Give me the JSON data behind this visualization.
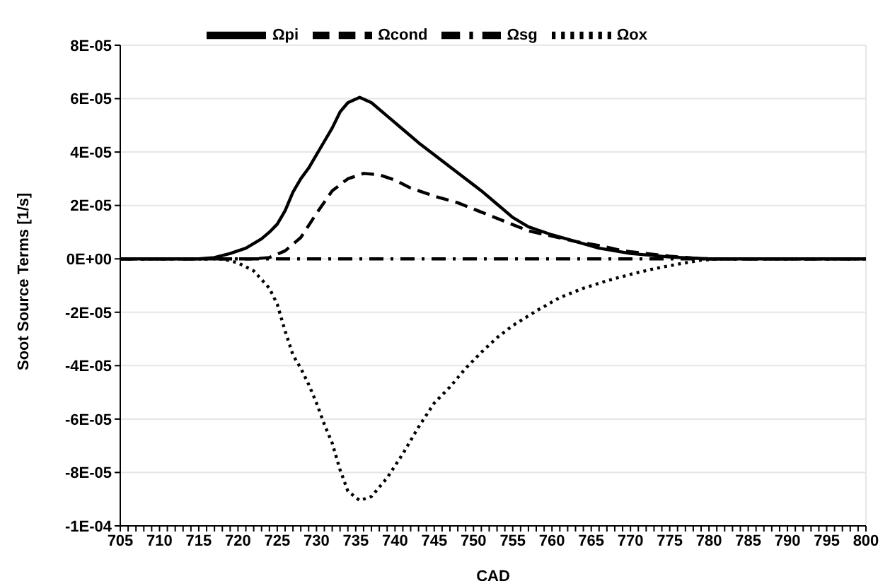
{
  "chart_data": {
    "type": "line",
    "xlabel": "CAD",
    "ylabel": "Soot Source Terms [1/s]",
    "legend": "top",
    "grid": "y",
    "xlim": [
      705,
      800
    ],
    "ylim": [
      -0.0001,
      8e-05
    ],
    "xticks": [
      705,
      {
        "value": 706,
        "label": null
      },
      {
        "value": 707,
        "label": null
      },
      {
        "value": 708,
        "label": null
      },
      {
        "value": 709,
        "label": null
      },
      710,
      {
        "value": 711,
        "label": null
      },
      {
        "value": 712,
        "label": null
      },
      {
        "value": 713,
        "label": null
      },
      {
        "value": 714,
        "label": null
      },
      715,
      {
        "value": 716,
        "label": null
      },
      {
        "value": 717,
        "label": null
      },
      {
        "value": 718,
        "label": null
      },
      {
        "value": 719,
        "label": null
      },
      720,
      {
        "value": 721,
        "label": null
      },
      {
        "value": 722,
        "label": null
      },
      {
        "value": 723,
        "label": null
      },
      {
        "value": 724,
        "label": null
      },
      725,
      {
        "value": 726,
        "label": null
      },
      {
        "value": 727,
        "label": null
      },
      {
        "value": 728,
        "label": null
      },
      {
        "value": 729,
        "label": null
      },
      730,
      {
        "value": 731,
        "label": null
      },
      {
        "value": 732,
        "label": null
      },
      {
        "value": 733,
        "label": null
      },
      {
        "value": 734,
        "label": null
      },
      735,
      {
        "value": 736,
        "label": null
      },
      {
        "value": 737,
        "label": null
      },
      {
        "value": 738,
        "label": null
      },
      {
        "value": 739,
        "label": null
      },
      740,
      {
        "value": 741,
        "label": null
      },
      {
        "value": 742,
        "label": null
      },
      {
        "value": 743,
        "label": null
      },
      {
        "value": 744,
        "label": null
      },
      745,
      {
        "value": 746,
        "label": null
      },
      {
        "value": 747,
        "label": null
      },
      {
        "value": 748,
        "label": null
      },
      {
        "value": 749,
        "label": null
      },
      750,
      {
        "value": 751,
        "label": null
      },
      {
        "value": 752,
        "label": null
      },
      {
        "value": 753,
        "label": null
      },
      {
        "value": 754,
        "label": null
      },
      755,
      {
        "value": 756,
        "label": null
      },
      {
        "value": 757,
        "label": null
      },
      {
        "value": 758,
        "label": null
      },
      {
        "value": 759,
        "label": null
      },
      760,
      {
        "value": 761,
        "label": null
      },
      {
        "value": 762,
        "label": null
      },
      {
        "value": 763,
        "label": null
      },
      {
        "value": 764,
        "label": null
      },
      765,
      {
        "value": 766,
        "label": null
      },
      {
        "value": 767,
        "label": null
      },
      {
        "value": 768,
        "label": null
      },
      {
        "value": 769,
        "label": null
      },
      770,
      {
        "value": 771,
        "label": null
      },
      {
        "value": 772,
        "label": null
      },
      {
        "value": 773,
        "label": null
      },
      {
        "value": 774,
        "label": null
      },
      775,
      {
        "value": 776,
        "label": null
      },
      {
        "value": 777,
        "label": null
      },
      {
        "value": 778,
        "label": null
      },
      {
        "value": 779,
        "label": null
      },
      780,
      {
        "value": 781,
        "label": null
      },
      {
        "value": 782,
        "label": null
      },
      {
        "value": 783,
        "label": null
      },
      {
        "value": 784,
        "label": null
      },
      785,
      {
        "value": 786,
        "label": null
      },
      {
        "value": 787,
        "label": null
      },
      {
        "value": 788,
        "label": null
      },
      {
        "value": 789,
        "label": null
      },
      790,
      {
        "value": 791,
        "label": null
      },
      {
        "value": 792,
        "label": null
      },
      {
        "value": 793,
        "label": null
      },
      {
        "value": 794,
        "label": null
      },
      795,
      {
        "value": 796,
        "label": null
      },
      {
        "value": 797,
        "label": null
      },
      {
        "value": 798,
        "label": null
      },
      {
        "value": 799,
        "label": null
      },
      800
    ],
    "yticks": [
      {
        "value": 8e-05,
        "label": "8E-05"
      },
      {
        "value": 6e-05,
        "label": "6E-05"
      },
      {
        "value": 4e-05,
        "label": "4E-05"
      },
      {
        "value": 2e-05,
        "label": "2E-05"
      },
      {
        "value": 0,
        "label": "0E+00"
      },
      {
        "value": -2e-05,
        "label": "-2E-05"
      },
      {
        "value": -4e-05,
        "label": "-4E-05"
      },
      {
        "value": -6e-05,
        "label": "-6E-05"
      },
      {
        "value": -8e-05,
        "label": "-8E-05"
      },
      {
        "value": -0.0001,
        "label": "-1E-04"
      }
    ],
    "series": [
      {
        "name": "Ωpi",
        "color": "#000000",
        "line_style": "solid",
        "x": [
          705,
          715,
          717,
          719,
          721,
          723,
          724,
          725,
          726,
          727,
          728,
          729,
          730,
          731,
          732,
          733,
          734,
          735.5,
          737,
          739,
          741,
          743,
          745,
          747,
          749,
          751,
          753,
          755,
          757,
          760,
          763,
          766,
          770,
          775,
          780,
          800
        ],
        "values": [
          0,
          0,
          5e-07,
          2e-06,
          4e-06,
          7.5e-06,
          1e-05,
          1.3e-05,
          1.8e-05,
          2.5e-05,
          3e-05,
          3.4e-05,
          3.9e-05,
          4.4e-05,
          4.9e-05,
          5.5e-05,
          5.85e-05,
          6.05e-05,
          5.85e-05,
          5.35e-05,
          4.85e-05,
          4.35e-05,
          3.9e-05,
          3.45e-05,
          3e-05,
          2.55e-05,
          2.05e-05,
          1.55e-05,
          1.2e-05,
          9e-06,
          6.5e-06,
          4e-06,
          2e-06,
          7e-07,
          0,
          0
        ]
      },
      {
        "name": "Ωcond",
        "color": "#000000",
        "line_style": "dashed",
        "x": [
          705,
          722,
          724,
          726,
          728,
          730,
          732,
          734,
          736,
          738,
          740,
          742,
          745,
          748,
          751,
          754,
          757,
          760,
          763,
          766,
          769,
          772,
          775,
          778,
          780,
          800
        ],
        "values": [
          0,
          0,
          5e-07,
          3e-06,
          8e-06,
          1.7e-05,
          2.55e-05,
          3e-05,
          3.2e-05,
          3.15e-05,
          2.95e-05,
          2.65e-05,
          2.35e-05,
          2.1e-05,
          1.75e-05,
          1.4e-05,
          1.05e-05,
          8.5e-06,
          6.5e-06,
          5e-06,
          3e-06,
          2e-06,
          1e-06,
          3e-07,
          0,
          0
        ]
      },
      {
        "name": "Ωsg",
        "color": "#000000",
        "line_style": "dashdot",
        "x": [
          705,
          800
        ],
        "values": [
          0,
          0
        ]
      },
      {
        "name": "Ωox",
        "color": "#000000",
        "line_style": "dotted",
        "x": [
          705,
          718,
          720,
          722,
          724,
          725,
          726,
          727,
          728,
          729,
          730,
          731,
          732,
          733,
          734,
          735.5,
          737,
          739,
          741,
          743,
          745,
          747,
          749,
          751,
          753,
          755,
          758,
          761,
          764,
          767,
          770,
          773,
          776,
          779,
          781,
          800
        ],
        "values": [
          0,
          0,
          -1.5e-06,
          -4.5e-06,
          -1.1e-05,
          -1.7e-05,
          -2.7e-05,
          -3.6e-05,
          -4.1e-05,
          -4.7e-05,
          -5.4e-05,
          -6.2e-05,
          -6.9e-05,
          -7.9e-05,
          -8.7e-05,
          -9.05e-05,
          -8.9e-05,
          -8.2e-05,
          -7.3e-05,
          -6.3e-05,
          -5.4e-05,
          -4.8e-05,
          -4.1e-05,
          -3.5e-05,
          -2.95e-05,
          -2.5e-05,
          -1.95e-05,
          -1.45e-05,
          -1.1e-05,
          -8.2e-06,
          -5.8e-06,
          -3.7e-06,
          -2e-06,
          -5e-07,
          0,
          0
        ]
      }
    ]
  }
}
